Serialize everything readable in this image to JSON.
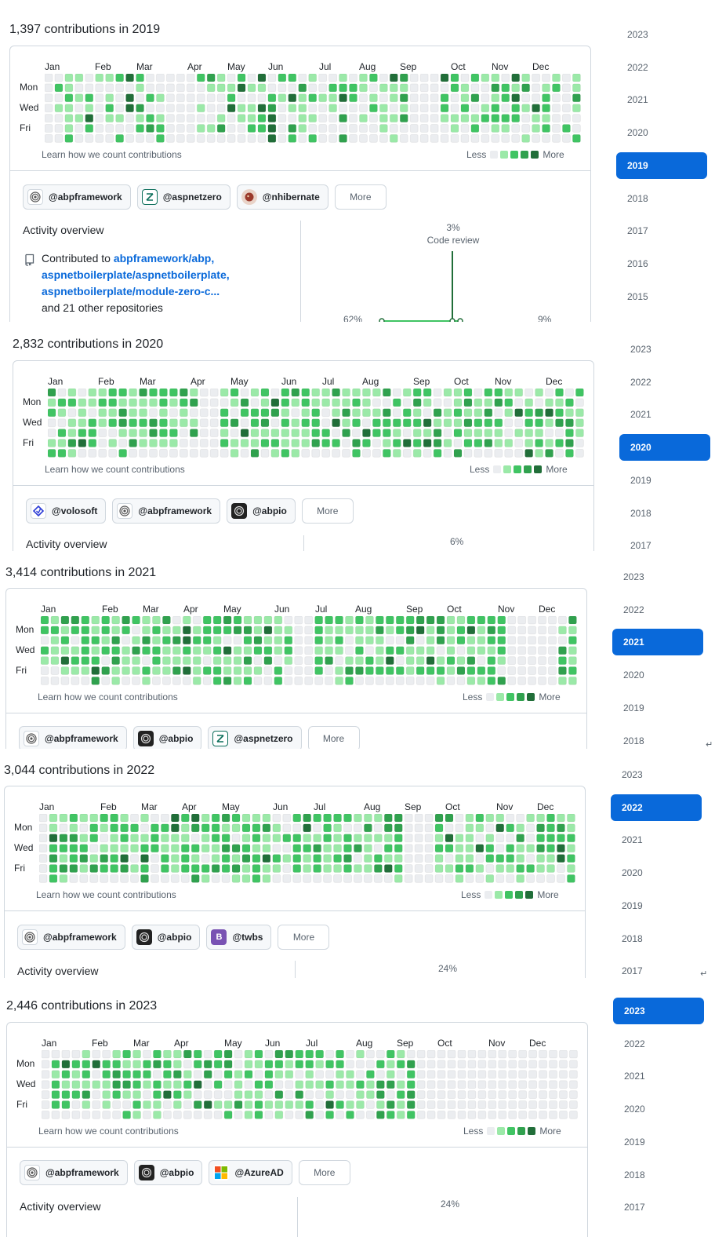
{
  "colors": {
    "level0": "#ebedf0",
    "level1": "#9be9a8",
    "level2": "#40c463",
    "level3": "#30a14e",
    "level4": "#216e39",
    "accent": "#0969da",
    "border": "#d0d7de"
  },
  "common": {
    "day_labels": [
      "Mon",
      "Wed",
      "Fri"
    ],
    "learn_text": "Learn how we count contributions",
    "legend_less": "Less",
    "legend_more": "More",
    "more_button": "More",
    "activity_overview": "Activity overview"
  },
  "panels": [
    {
      "heading": "1,397 contributions in 2019",
      "months": [
        "Jan",
        "Feb",
        "Mar",
        "Apr",
        "May",
        "Jun",
        "Jul",
        "Aug",
        "Sep",
        "Oct",
        "Nov",
        "Dec"
      ],
      "orgs": [
        {
          "name": "@abpframework",
          "icon": "abp-fingerprint-icon"
        },
        {
          "name": "@aspnetzero",
          "icon": "aspnetzero-logo-icon"
        },
        {
          "name": "@nhibernate",
          "icon": "nhibernate-logo-icon"
        }
      ],
      "activity": {
        "contributed_prefix": "Contributed to",
        "repos": [
          "abpframework/abp,",
          "aspnetboilerplate/aspnetboilerplate,",
          "aspnetboilerplate/module-zero-c..."
        ],
        "others": "and 21 other repositories",
        "code_review_pct": "3%",
        "code_review_label": "Code review",
        "left_pct": "62%",
        "right_pct": "9%"
      },
      "years": [
        "2023",
        "2022",
        "2021",
        "2020",
        "2019",
        "2018",
        "2017",
        "2016",
        "2015"
      ],
      "selected_year": "2019"
    },
    {
      "heading": "2,832 contributions in 2020",
      "months": [
        "Jan",
        "Feb",
        "Mar",
        "Apr",
        "May",
        "Jun",
        "Jul",
        "Aug",
        "Sep",
        "Oct",
        "Nov",
        "Dec"
      ],
      "orgs": [
        {
          "name": "@volosoft",
          "icon": "volosoft-logo-icon"
        },
        {
          "name": "@abpframework",
          "icon": "abp-fingerprint-icon"
        },
        {
          "name": "@abpio",
          "icon": "abpio-logo-icon"
        }
      ],
      "activity": {
        "top_pct": "6%"
      },
      "years": [
        "2023",
        "2022",
        "2021",
        "2020",
        "2019",
        "2018",
        "2017"
      ],
      "selected_year": "2020"
    },
    {
      "heading": "3,414 contributions in 2021",
      "months": [
        "Jan",
        "Feb",
        "Mar",
        "Apr",
        "May",
        "Jun",
        "Jul",
        "Aug",
        "Sep",
        "Oct",
        "Nov",
        "Dec"
      ],
      "orgs": [
        {
          "name": "@abpframework",
          "icon": "abp-fingerprint-icon"
        },
        {
          "name": "@abpio",
          "icon": "abpio-logo-icon"
        },
        {
          "name": "@aspnetzero",
          "icon": "aspnetzero-logo-icon"
        }
      ],
      "activity": {},
      "years": [
        "2023",
        "2022",
        "2021",
        "2020",
        "2019",
        "2018"
      ],
      "selected_year": "2021"
    },
    {
      "heading": "3,044 contributions in 2022",
      "months": [
        "Jan",
        "Feb",
        "Mar",
        "Apr",
        "May",
        "Jun",
        "Jul",
        "Aug",
        "Sep",
        "Oct",
        "Nov",
        "Dec"
      ],
      "orgs": [
        {
          "name": "@abpframework",
          "icon": "abp-fingerprint-icon"
        },
        {
          "name": "@abpio",
          "icon": "abpio-logo-icon"
        },
        {
          "name": "@twbs",
          "icon": "bootstrap-logo-icon"
        }
      ],
      "activity": {
        "top_pct": "24%"
      },
      "years": [
        "2023",
        "2022",
        "2021",
        "2020",
        "2019",
        "2018",
        "2017"
      ],
      "selected_year": "2022"
    },
    {
      "heading": "2,446 contributions in 2023",
      "months": [
        "Jan",
        "Feb",
        "Mar",
        "Apr",
        "May",
        "Jun",
        "Jul",
        "Aug",
        "Sep",
        "Oct",
        "Nov",
        "Dec"
      ],
      "orgs": [
        {
          "name": "@abpframework",
          "icon": "abp-fingerprint-icon"
        },
        {
          "name": "@abpio",
          "icon": "abpio-logo-icon"
        },
        {
          "name": "@AzureAD",
          "icon": "azuread-microsoft-icon"
        }
      ],
      "activity": {
        "top_pct": "24%"
      },
      "years": [
        "2023",
        "2022",
        "2021",
        "2020",
        "2019",
        "2018",
        "2017"
      ],
      "selected_year": "2023"
    }
  ]
}
